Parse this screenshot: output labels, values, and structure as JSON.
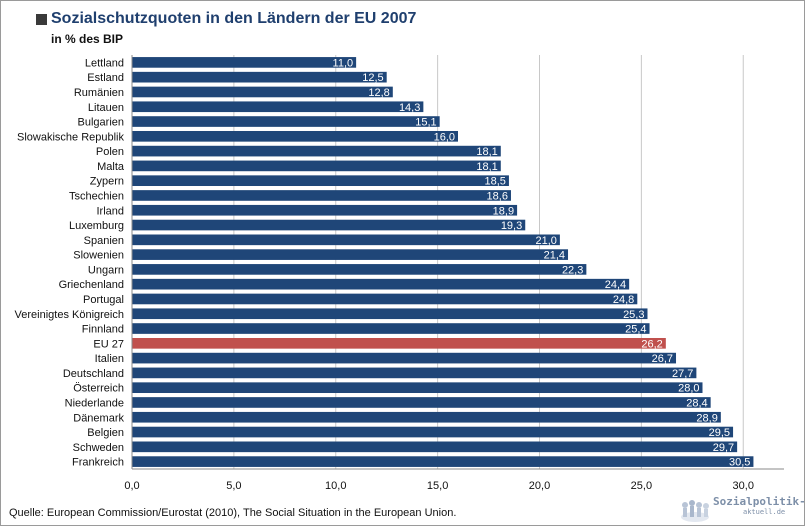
{
  "chart_data": {
    "type": "bar",
    "orientation": "horizontal",
    "title": "Sozialschutzquoten in den Ländern der EU 2007",
    "subtitle": "in % des BIP",
    "categories": [
      "Lettland",
      "Estland",
      "Rumänien",
      "Litauen",
      "Bulgarien",
      "Slowakische Republik",
      "Polen",
      "Malta",
      "Zypern",
      "Tschechien",
      "Irland",
      "Luxemburg",
      "Spanien",
      "Slowenien",
      "Ungarn",
      "Griechenland",
      "Portugal",
      "Vereinigtes Königreich",
      "Finnland",
      "EU 27",
      "Italien",
      "Deutschland",
      "Österreich",
      "Niederlande",
      "Dänemark",
      "Belgien",
      "Schweden",
      "Frankreich"
    ],
    "values": [
      11.0,
      12.5,
      12.8,
      14.3,
      15.1,
      16.0,
      18.1,
      18.1,
      18.5,
      18.6,
      18.9,
      19.3,
      21.0,
      21.4,
      22.3,
      24.4,
      24.8,
      25.3,
      25.4,
      26.2,
      26.7,
      27.7,
      28.0,
      28.4,
      28.9,
      29.5,
      29.7,
      30.5
    ],
    "value_labels": [
      "11,0",
      "12,5",
      "12,8",
      "14,3",
      "15,1",
      "16,0",
      "18,1",
      "18,1",
      "18,5",
      "18,6",
      "18,9",
      "19,3",
      "21,0",
      "21,4",
      "22,3",
      "24,4",
      "24,8",
      "25,3",
      "25,4",
      "26,2",
      "26,7",
      "27,7",
      "28,0",
      "28,4",
      "28,9",
      "29,5",
      "29,7",
      "30,5"
    ],
    "highlight_category": "EU 27",
    "xlim": [
      0,
      32
    ],
    "xticks": [
      0,
      5,
      10,
      15,
      20,
      25,
      30
    ],
    "xtick_labels": [
      "0,0",
      "5,0",
      "10,0",
      "15,0",
      "20,0",
      "25,0",
      "30,0"
    ],
    "grid": "vertical",
    "colors": {
      "bar": "#1f4678",
      "highlight": "#c0504d",
      "grid": "#c8c8c8"
    }
  },
  "source": "Quelle: European Commission/Eurostat (2010), The Social Situation in the European Union.",
  "logo": {
    "line1": "Sozialpolitik-",
    "line2": "aktuell.de"
  }
}
